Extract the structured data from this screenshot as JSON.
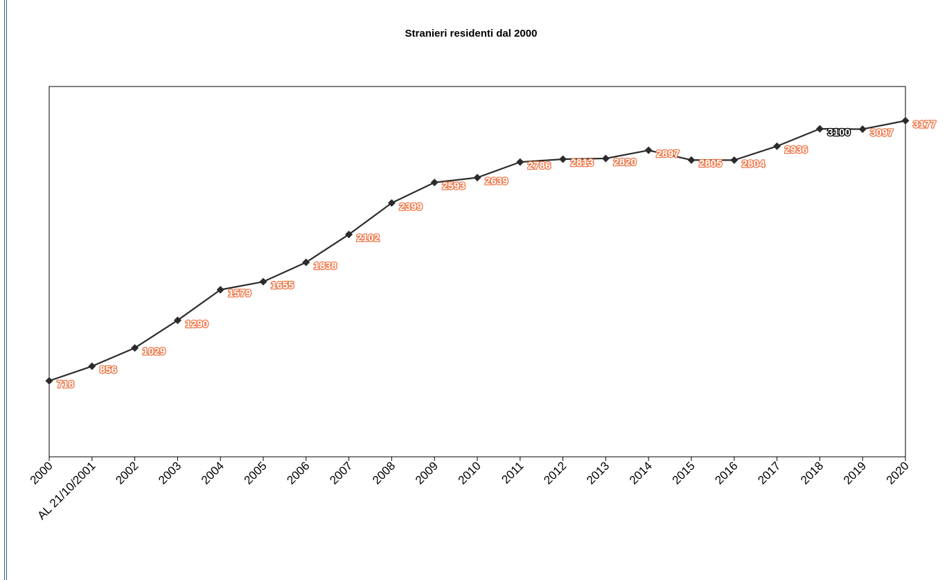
{
  "chart_data": {
    "type": "line",
    "title": "Stranieri residenti dal 2000",
    "xlabel": "",
    "ylabel": "",
    "categories": [
      "2000",
      "AL 21/10/2001",
      "2002",
      "2003",
      "2004",
      "2005",
      "2006",
      "2007",
      "2008",
      "2009",
      "2010",
      "2011",
      "2012",
      "2013",
      "2014",
      "2015",
      "2016",
      "2017",
      "2018",
      "2019",
      "2020"
    ],
    "series": [
      {
        "values": [
          718,
          856,
          1029,
          1290,
          1579,
          1655,
          1838,
          2102,
          2399,
          2593,
          2639,
          2786,
          2813,
          2820,
          2897,
          2805,
          2804,
          2936,
          3100,
          3097,
          3177
        ]
      }
    ],
    "data_labels": [
      "718",
      "856",
      "1029",
      "1290",
      "1579",
      "1655",
      "1838",
      "2102",
      "2399",
      "2593",
      "2639",
      "2786",
      "2813",
      "2820",
      "2897",
      "2805",
      "2804",
      "2936",
      "3100",
      "3097",
      "3177"
    ],
    "ylim": [
      0,
      3500
    ],
    "y_axis_visible": false,
    "grid": false,
    "legend": "none",
    "colors": {
      "line": "#2b2b2b",
      "marker": "#2b2b2b",
      "label_fill": "#ffffff",
      "label_outline": "#f07444",
      "label_outline_alt": "#000000"
    }
  }
}
